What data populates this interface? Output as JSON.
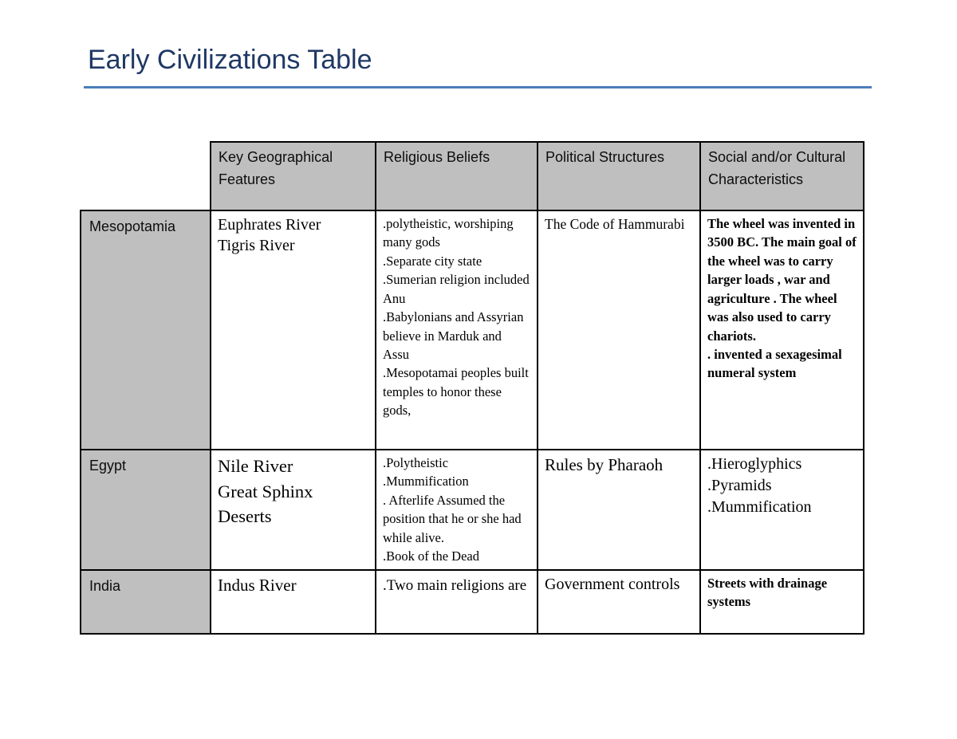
{
  "page": {
    "title": "Early Civilizations Table"
  },
  "colors": {
    "title_text": "#1f3864",
    "title_rule": "#4a7ebb",
    "header_fill": "#bfbfbf",
    "table_border": "#000000"
  },
  "table": {
    "columns": [
      "Key Geographical Features",
      "Religious Beliefs",
      "Political Structures",
      "Social and/or Cultural Characteristics"
    ],
    "rows": [
      {
        "label": "Mesopotamia",
        "geography": "Euphrates River\nTigris River",
        "religion": ".polytheistic, worshiping many gods\n.Separate city state\n.Sumerian religion included Anu\n.Babylonians and Assyrian believe in Marduk and Assu\n.Mesopotamai peoples built temples to honor these gods,",
        "politics": "The Code of Hammurabi",
        "culture": "The wheel was invented in 3500 BC. The main goal of the wheel was to carry larger loads , war and agriculture . The wheel was also used to carry chariots.\n. invented a sexagesimal numeral system"
      },
      {
        "label": "Egypt",
        "geography": "Nile River\nGreat Sphinx\nDeserts",
        "religion": ".Polytheistic\n.Mummification\n. Afterlife Assumed the position that he or she had while alive.\n.Book of the Dead",
        "politics": "Rules by Pharaoh",
        "culture": ".Hieroglyphics\n.Pyramids\n.Mummification"
      },
      {
        "label": "India",
        "geography": "Indus River",
        "religion": ".Two main religions are",
        "politics": "Government controls",
        "culture": "Streets with drainage systems"
      }
    ]
  }
}
